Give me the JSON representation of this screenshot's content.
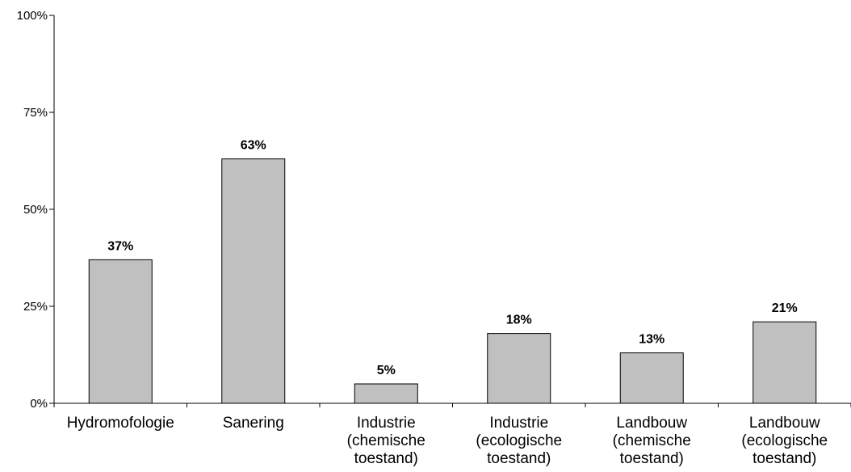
{
  "chart_data": {
    "type": "bar",
    "title": "",
    "xlabel": "",
    "ylabel": "",
    "ylim": [
      0,
      100
    ],
    "grid": false,
    "legend": "none",
    "yticks": [
      "0%",
      "25%",
      "50%",
      "75%",
      "100%"
    ],
    "categories": [
      [
        "Hydromofologie"
      ],
      [
        "Sanering"
      ],
      [
        "Industrie",
        "(chemische",
        "toestand)"
      ],
      [
        "Industrie",
        "(ecologische",
        "toestand)"
      ],
      [
        "Landbouw",
        "(chemische",
        "toestand)"
      ],
      [
        "Landbouw",
        "(ecologische",
        "toestand)"
      ]
    ],
    "values": [
      37,
      63,
      5,
      18,
      13,
      21
    ],
    "value_labels": [
      "37%",
      "63%",
      "5%",
      "18%",
      "13%",
      "21%"
    ],
    "bar_color": "#c0c0c0",
    "bar_edge_color": "#000000"
  }
}
